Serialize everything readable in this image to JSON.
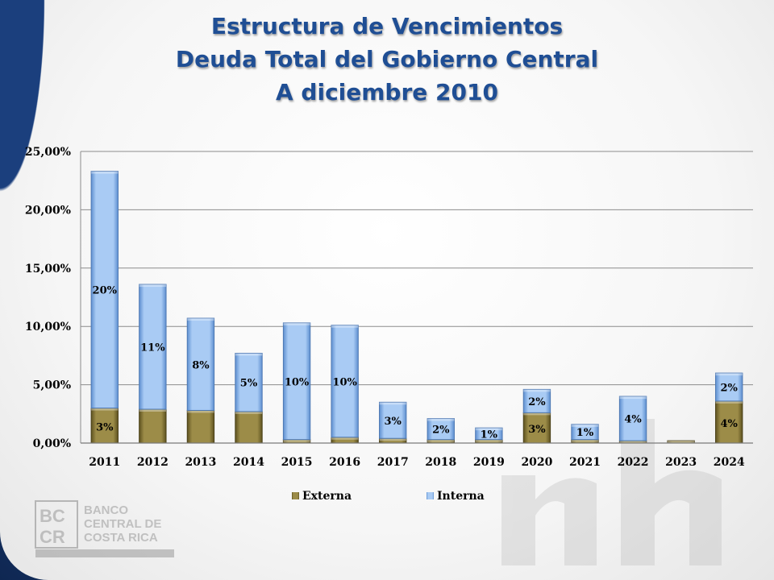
{
  "title": {
    "line1": "Estructura de Vencimientos",
    "line2": "Deuda Total del Gobierno Central",
    "line3": "A diciembre 2010"
  },
  "colors": {
    "externa": "#8a7a3a",
    "interna": "#8fb8ea",
    "title": "#1f4e94",
    "grid": "#8c8c8c"
  },
  "logo": {
    "initials": "BCCR",
    "line1": "BANCO",
    "line2": "CENTRAL DE",
    "line3": "COSTA RICA"
  },
  "chart_data": {
    "type": "bar",
    "stacked": true,
    "categories": [
      "2011",
      "2012",
      "2013",
      "2014",
      "2015",
      "2016",
      "2017",
      "2018",
      "2019",
      "2020",
      "2021",
      "2022",
      "2023",
      "2024"
    ],
    "series": [
      {
        "name": "Externa",
        "values": [
          3.0,
          2.9,
          2.8,
          2.7,
          0.3,
          0.5,
          0.4,
          0.3,
          0.3,
          2.6,
          0.3,
          0.2,
          0.2,
          3.6
        ],
        "labels": [
          "3%",
          "",
          "",
          "",
          "",
          "",
          "",
          "",
          "",
          "3%",
          "",
          "",
          "",
          "4%"
        ]
      },
      {
        "name": "Interna",
        "values": [
          20.3,
          10.7,
          7.9,
          5.0,
          10.0,
          9.6,
          3.1,
          1.8,
          1.0,
          2.0,
          1.3,
          3.8,
          0.0,
          2.4
        ],
        "labels": [
          "20%",
          "11%",
          "8%",
          "5%",
          "10%",
          "10%",
          "3%",
          "2%",
          "1%",
          "2%",
          "1%",
          "4%",
          "",
          "2%"
        ]
      }
    ],
    "ylim": [
      0,
      25
    ],
    "yticks": [
      "0,00%",
      "5,00%",
      "10,00%",
      "15,00%",
      "20,00%",
      "25,00%"
    ],
    "grid": true,
    "legend_position": "bottom"
  }
}
